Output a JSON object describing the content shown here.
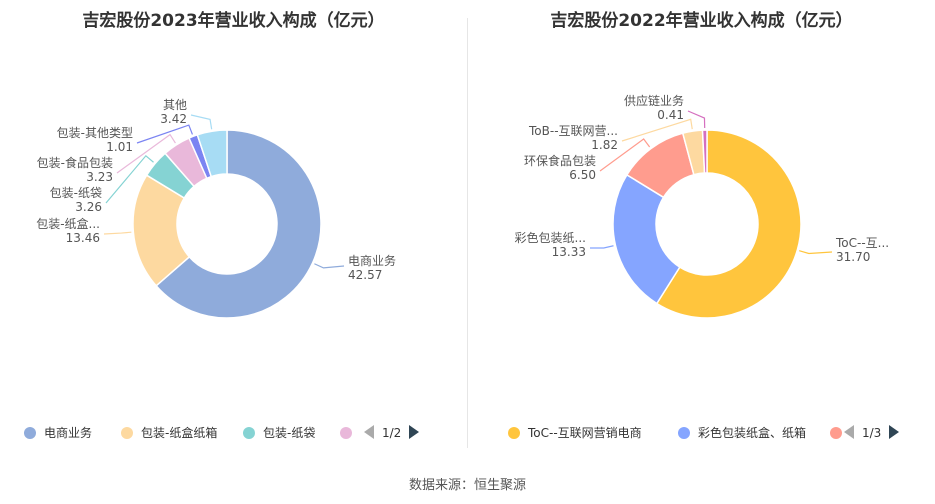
{
  "source": "数据来源：恒生聚源",
  "chart_data": [
    {
      "type": "pie",
      "title": "吉宏股份2023年营业收入构成（亿元）",
      "slices": [
        {
          "label": "电商业务",
          "value": 42.57,
          "color": "#8fabdb"
        },
        {
          "label": "包装-纸盒...",
          "value": 13.46,
          "color": "#fdd9a0"
        },
        {
          "label": "包装-纸袋",
          "value": 3.26,
          "color": "#85d3d3"
        },
        {
          "label": "包装-食品包装",
          "value": 3.23,
          "color": "#e9b8da"
        },
        {
          "label": "包装-其他类型",
          "value": 1.01,
          "color": "#7b84f2"
        },
        {
          "label": "其他",
          "value": 3.42,
          "color": "#a7dcf4"
        }
      ],
      "legend": {
        "items": [
          {
            "label": "电商业务",
            "color": "#8fabdb"
          },
          {
            "label": "包装-纸盒纸箱",
            "color": "#fdd9a0"
          },
          {
            "label": "包装-纸袋",
            "color": "#85d3d3"
          },
          {
            "label": "",
            "color": "#e9b8da"
          }
        ],
        "page": "1/2"
      }
    },
    {
      "type": "pie",
      "title": "吉宏股份2022年营业收入构成（亿元）",
      "slices": [
        {
          "label": "ToC--互...",
          "value": 31.7,
          "color": "#ffc53d"
        },
        {
          "label": "彩色包装纸...",
          "value": 13.33,
          "color": "#85a5ff"
        },
        {
          "label": "环保食品包装",
          "value": 6.5,
          "color": "#ff9c8e"
        },
        {
          "label": "ToB--互联网营...",
          "value": 1.82,
          "color": "#fdd9a0"
        },
        {
          "label": "供应链业务",
          "value": 0.41,
          "color": "#d56fbf"
        }
      ],
      "legend": {
        "items": [
          {
            "label": "ToC--互联网营销电商",
            "color": "#ffc53d"
          },
          {
            "label": "彩色包装纸盒、纸箱",
            "color": "#85a5ff"
          },
          {
            "label": "",
            "color": "#ff9c8e"
          }
        ],
        "page": "1/3"
      }
    }
  ]
}
